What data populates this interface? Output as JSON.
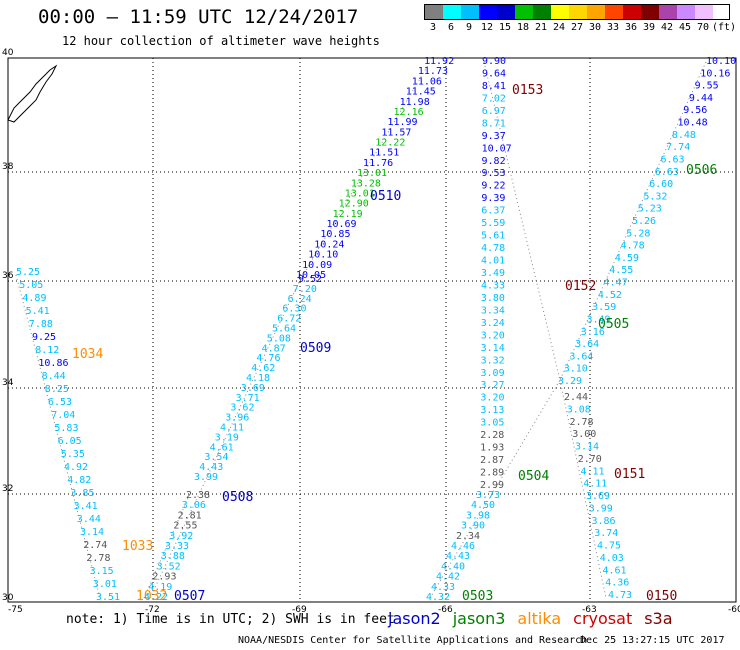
{
  "title": "00:00 – 11:59 UTC 12/24/2017",
  "subtitle": "12 hour collection of altimeter wave heights",
  "legend": {
    "labels": [
      "3",
      "6",
      "9",
      "12",
      "15",
      "18",
      "21",
      "24",
      "27",
      "30",
      "33",
      "36",
      "39",
      "42",
      "45",
      "70",
      "(ft)"
    ],
    "colors": [
      "#808080",
      "#00ffff",
      "#00bfff",
      "#0000ff",
      "#0000cd",
      "#00c000",
      "#008000",
      "#ffff00",
      "#ffd700",
      "#ffa500",
      "#ff4500",
      "#cc0000",
      "#800000",
      "#aa44aa",
      "#cc88ff",
      "#f0c0ff"
    ]
  },
  "axes": {
    "lon_labels": [
      "-75",
      "-72",
      "-69",
      "-66",
      "-63",
      "-60"
    ],
    "lat_labels": [
      "30",
      "32",
      "34",
      "36",
      "38",
      "40"
    ]
  },
  "tracks": [
    {
      "id": "1034",
      "color": "#ff8c00",
      "labels": [
        "5.25",
        "5.05",
        "4.89",
        "5.41",
        "7.88",
        "9.25",
        "8.12",
        "10.86",
        "8.44",
        "8.25",
        "6.53",
        "7.04",
        "5.83",
        "6.05",
        "5.35",
        "4.92",
        "4.82",
        "3.85",
        "3.41",
        "3.44",
        "3.14",
        "2.74",
        "2.78",
        "3.15",
        "3.01",
        "3.51"
      ],
      "label_colors": [
        "#00bfff",
        "#00bfff",
        "#00bfff",
        "#00bfff",
        "#00bfff",
        "#0000ff",
        "#00bfff",
        "#0000ff",
        "#00bfff",
        "#00bfff",
        "#00bfff",
        "#00bfff",
        "#00bfff",
        "#00bfff",
        "#00bfff",
        "#00bfff",
        "#00bfff",
        "#00bfff",
        "#00bfff",
        "#00bfff",
        "#00bfff",
        "#555555",
        "#555555",
        "#00bfff",
        "#00bfff",
        "#00bfff"
      ]
    },
    {
      "id": "1033",
      "color": "#ff8c00"
    },
    {
      "id": "1032",
      "color": "#ff8c00"
    },
    {
      "id": "0507",
      "color": "#0000cd"
    },
    {
      "id": "0508",
      "color": "#0000cd",
      "labels": [
        "2.38",
        "3.06",
        "2.81",
        "2.55",
        "3.92",
        "3.33",
        "3.88",
        "3.52",
        "2.93",
        "4.19",
        "4.22"
      ],
      "label_colors": [
        "#555555",
        "#00bfff",
        "#555555",
        "#555555",
        "#00bfff",
        "#00bfff",
        "#00bfff",
        "#00bfff",
        "#555555",
        "#00bfff",
        "#00bfff"
      ]
    },
    {
      "id": "0509",
      "color": "#0000cd",
      "labels": [
        "9.52",
        "7.20",
        "6.24",
        "6.30",
        "6.72",
        "5.64",
        "5.08",
        "4.87",
        "4.76",
        "4.62",
        "4.18",
        "3.69",
        "3.71",
        "3.62",
        "3.96",
        "4.11",
        "3.19",
        "4.61",
        "3.54",
        "4.43",
        "3.99"
      ],
      "label_colors": [
        "#0000ff",
        "#00bfff",
        "#00bfff",
        "#00bfff",
        "#00bfff",
        "#00bfff",
        "#00bfff",
        "#00bfff",
        "#00bfff",
        "#00bfff",
        "#00bfff",
        "#00bfff",
        "#00bfff",
        "#00bfff",
        "#00bfff",
        "#00bfff",
        "#00bfff",
        "#00bfff",
        "#00bfff",
        "#00bfff",
        "#00bfff"
      ]
    },
    {
      "id": "0510",
      "color": "#0000cd",
      "labels": [
        "11.92",
        "11.73",
        "11.06",
        "11.45",
        "11.98",
        "12.16",
        "11.99",
        "11.57",
        "12.22",
        "11.51",
        "11.76",
        "13.01",
        "13.28",
        "13.01",
        "12.90",
        "12.19",
        "10.69",
        "10.85",
        "10.24",
        "10.10",
        "10.09",
        "10.05"
      ],
      "label_colors": [
        "#0000ff",
        "#0000ff",
        "#0000ff",
        "#0000ff",
        "#0000ff",
        "#00c000",
        "#0000ff",
        "#0000ff",
        "#00c000",
        "#0000ff",
        "#0000ff",
        "#00c000",
        "#00c000",
        "#00c000",
        "#00c000",
        "#00c000",
        "#0000ff",
        "#0000ff",
        "#0000ff",
        "#0000ff",
        "#0000ff",
        "#0000ff"
      ]
    },
    {
      "id": "0153",
      "color": "#800000",
      "labels": [
        "9.90",
        "9.64",
        "8.41",
        "7.02",
        "6.97",
        "8.71",
        "9.37",
        "10.07",
        "9.82",
        "9.53",
        "9.22",
        "9.39",
        "6.37",
        "5.59",
        "5.61",
        "4.78",
        "4.01",
        "3.49",
        "4.33",
        "3.80",
        "3.34",
        "3.24",
        "3.20",
        "3.14",
        "3.32",
        "3.09",
        "3.27",
        "3.20",
        "3.13",
        "3.05",
        "2.28",
        "1.93",
        "2.87",
        "2.89",
        "2.99"
      ],
      "label_colors": [
        "#0000ff",
        "#0000ff",
        "#0000ff",
        "#00bfff",
        "#00bfff",
        "#00bfff",
        "#0000ff",
        "#0000ff",
        "#0000ff",
        "#0000ff",
        "#0000ff",
        "#0000ff",
        "#00bfff",
        "#00bfff",
        "#00bfff",
        "#00bfff",
        "#00bfff",
        "#00bfff",
        "#00bfff",
        "#00bfff",
        "#00bfff",
        "#00bfff",
        "#00bfff",
        "#00bfff",
        "#00bfff",
        "#00bfff",
        "#00bfff",
        "#00bfff",
        "#00bfff",
        "#00bfff",
        "#555555",
        "#555555",
        "#555555",
        "#555555",
        "#555555"
      ]
    },
    {
      "id": "0152",
      "color": "#800000"
    },
    {
      "id": "0506",
      "color": "#008000",
      "labels": [
        "10.10",
        "10.16",
        "9.55",
        "9.44",
        "9.56",
        "10.48",
        "8.48",
        "7.74",
        "6.63",
        "6.63",
        "6.60",
        "5.32",
        "5.23",
        "5.26",
        "5.28",
        "4.78",
        "4.59",
        "4.55",
        "4.47",
        "4.52",
        "3.59",
        "3.49",
        "3.16",
        "3.64",
        "3.64",
        "3.10",
        "3.29"
      ],
      "label_colors": [
        "#0000ff",
        "#0000ff",
        "#0000ff",
        "#0000ff",
        "#0000ff",
        "#0000ff",
        "#00bfff",
        "#00bfff",
        "#00bfff",
        "#00bfff",
        "#00bfff",
        "#00bfff",
        "#00bfff",
        "#00bfff",
        "#00bfff",
        "#00bfff",
        "#00bfff",
        "#00bfff",
        "#00bfff",
        "#00bfff",
        "#00bfff",
        "#00bfff",
        "#00bfff",
        "#00bfff",
        "#00bfff",
        "#00bfff",
        "#00bfff"
      ]
    },
    {
      "id": "0505",
      "color": "#008000"
    },
    {
      "id": "0504",
      "color": "#008000"
    },
    {
      "id": "0503",
      "color": "#008000",
      "labels": [
        "3.73",
        "4.50",
        "3.98",
        "3.90",
        "2.34",
        "4.46",
        "4.43",
        "4.40",
        "4.42",
        "4.33",
        "4.32"
      ],
      "label_colors": [
        "#00bfff",
        "#00bfff",
        "#00bfff",
        "#00bfff",
        "#555555",
        "#00bfff",
        "#00bfff",
        "#00bfff",
        "#00bfff",
        "#00bfff",
        "#00bfff"
      ]
    },
    {
      "id": "0151",
      "color": "#800000",
      "labels": [
        "2.44",
        "3.08",
        "2.78",
        "3.00",
        "3.14",
        "2.70",
        "4.11",
        "4.11",
        "3.69",
        "3.99",
        "3.86",
        "3.74",
        "4.75",
        "4.03",
        "4.61",
        "4.36",
        "4.73"
      ],
      "label_colors": [
        "#555555",
        "#00bfff",
        "#555555",
        "#555555",
        "#00bfff",
        "#555555",
        "#00bfff",
        "#00bfff",
        "#00bfff",
        "#00bfff",
        "#00bfff",
        "#00bfff",
        "#00bfff",
        "#00bfff",
        "#00bfff",
        "#00bfff",
        "#00bfff"
      ]
    },
    {
      "id": "0150",
      "color": "#800000"
    }
  ],
  "note": "note: 1) Time is in UTC; 2) SWH is in feet",
  "satellites": [
    {
      "name": "jason2",
      "color": "#0000cd"
    },
    {
      "name": "jason3",
      "color": "#008000"
    },
    {
      "name": "altika",
      "color": "#ff8c00"
    },
    {
      "name": "cryosat",
      "color": "#cc0000"
    },
    {
      "name": "s3a",
      "color": "#800000"
    }
  ],
  "credit": "NOAA/NESDIS Center for Satellite Applications and Research",
  "timestamp": "Dec 25 13:27:15 UTC 2017"
}
